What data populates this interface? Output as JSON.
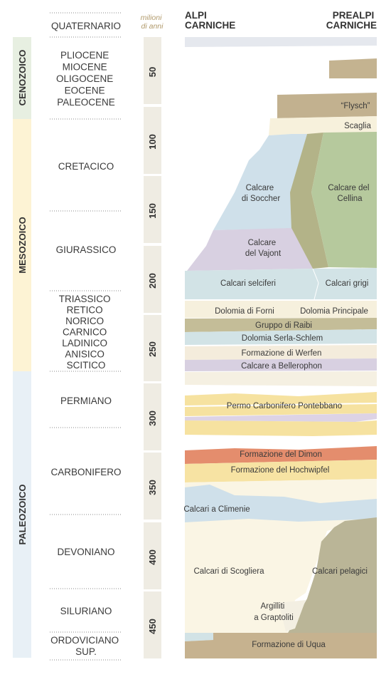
{
  "headers": {
    "left_line1": "ALPI",
    "left_line2": "CARNICHE",
    "right_line1": "PREALPI",
    "right_line2": "CARNICHE",
    "unit_line1": "milioni",
    "unit_line2": "di anni"
  },
  "eras": [
    {
      "name": "CENOZOICO",
      "color": "#e7efe1"
    },
    {
      "name": "MESOZOICO",
      "color": "#fdf3d4"
    },
    {
      "name": "PALEOZOICO",
      "color": "#e8f0f6"
    }
  ],
  "periods": [
    {
      "lines": [
        "QUATERNARIO"
      ]
    },
    {
      "lines": [
        "PLIOCENE",
        "MIOCENE",
        "OLIGOCENE",
        "EOCENE",
        "PALEOCENE"
      ]
    },
    {
      "lines": [
        "CRETACICO"
      ]
    },
    {
      "lines": [
        "GIURASSICO"
      ]
    },
    {
      "lines": [
        "TRIASSICO",
        "RETICO",
        "NORICO",
        "CARNICO",
        "LADINICO",
        "ANISICO",
        "SCITICO"
      ]
    },
    {
      "lines": [
        "PERMIANO"
      ]
    },
    {
      "lines": [
        "CARBONIFERO"
      ]
    },
    {
      "lines": [
        "DEVONIANO"
      ]
    },
    {
      "lines": [
        "SILURIANO"
      ]
    },
    {
      "lines": [
        "ORDOVICIANO",
        "SUP."
      ]
    }
  ],
  "time_ticks": [
    "50",
    "100",
    "150",
    "200",
    "250",
    "300",
    "350",
    "400",
    "450"
  ],
  "formations": [
    {
      "name": "“Flysch”",
      "color": "#c2b18f"
    },
    {
      "name": "Scaglia",
      "color": "#f7f1dc"
    },
    {
      "name": "Calcare di Soccher",
      "lines": [
        "Calcare",
        "di Soccher"
      ],
      "color": "#cfe0ea"
    },
    {
      "name": "Calcare del Cellina",
      "lines": [
        "Calcare del",
        "Cellina"
      ],
      "color": "#b6c99d"
    },
    {
      "name": "Calcare del Vajont",
      "lines": [
        "Calcare",
        "del Vajont"
      ],
      "color": "#d8d0e1"
    },
    {
      "name": "Calcari selciferi",
      "color": "#d2e3e6"
    },
    {
      "name": "Calcari grigi",
      "color": "#d2e3e6"
    },
    {
      "name": "Dolomia di Forni",
      "color": "#f6f0dd"
    },
    {
      "name": "Dolomia Principale",
      "color": "#f6f0dd"
    },
    {
      "name": "Gruppo di Raibi",
      "color": "#c4bd98"
    },
    {
      "name": "Dolomia Serla-Schlem",
      "color": "#d2e3e6"
    },
    {
      "name": "Formazione di Werfen",
      "color": "#f4ecdc"
    },
    {
      "name": "Calcare a Bellerophon",
      "color": "#d8d0e1"
    },
    {
      "name": "Permo Carbonifero Pontebbano",
      "color": "#f6e2a0"
    },
    {
      "name": "Formazione del Dimon",
      "color": "#e48d6d"
    },
    {
      "name": "Formazione del Hochwipfel",
      "color": "#f7e3a3"
    },
    {
      "name": "Calcari a Climenie",
      "color": "#cfe0ea"
    },
    {
      "name": "Calcari di Scogliera",
      "color": "#faf5e4"
    },
    {
      "name": "Calcari pelagici",
      "color": "#bab597"
    },
    {
      "name": "Argilliti a Graptoliti",
      "lines": [
        "Argilliti",
        "a Graptoliti"
      ],
      "color": "#f3efe2"
    },
    {
      "name": "Formazione di Uqua",
      "color": "#c6b28f"
    }
  ]
}
